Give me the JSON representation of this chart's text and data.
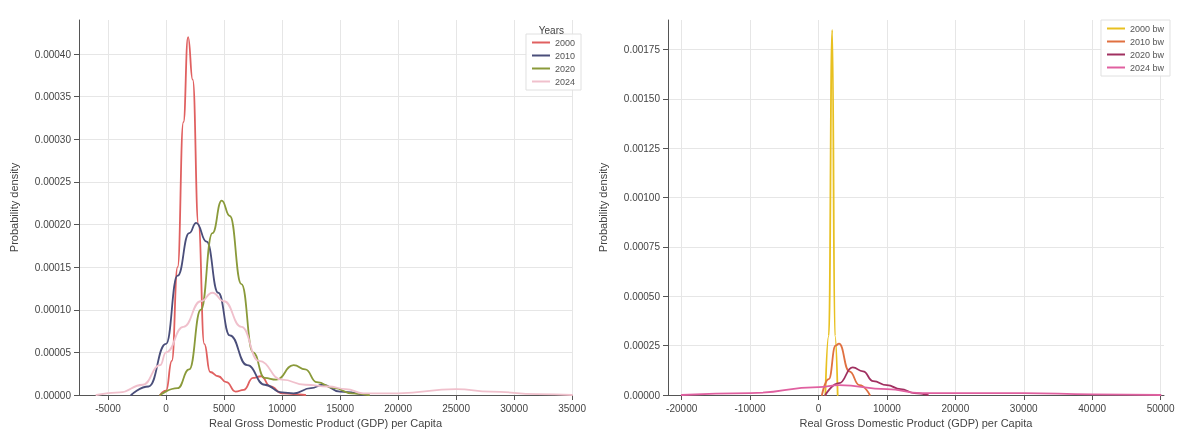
{
  "chart_data": [
    {
      "type": "line",
      "xlabel": "Real Gross Domestic Product (GDP) per Capita",
      "ylabel": "Probability density",
      "legend_title": "Years",
      "legend": "top right",
      "grid": true,
      "marker": "none",
      "line_style": "solid",
      "xlim": [
        -7500,
        35000
      ],
      "xticks": [
        -5000,
        0,
        5000,
        10000,
        15000,
        20000,
        25000,
        30000,
        35000
      ],
      "ylim": [
        0,
        0.00044
      ],
      "yticks": [
        {
          "value": 0,
          "label": "0.00000"
        },
        {
          "value": 5e-05,
          "label": "0.00005"
        },
        {
          "value": 0.0001,
          "label": "0.00010"
        },
        {
          "value": 0.00015,
          "label": "0.00015"
        },
        {
          "value": 0.0002,
          "label": "0.00020"
        },
        {
          "value": 0.00025,
          "label": "0.00025"
        },
        {
          "value": 0.0003,
          "label": "0.00030"
        },
        {
          "value": 0.00035,
          "label": "0.00035"
        },
        {
          "value": 0.0004,
          "label": "0.00040"
        }
      ],
      "series": [
        {
          "name": "2000",
          "color": "#e06060",
          "x": [
            -500,
            0,
            500,
            1000,
            1500,
            1900,
            2300,
            2800,
            3300,
            3800,
            4500,
            5200,
            6000,
            6700,
            7500,
            8200,
            9000,
            10000,
            11000,
            12000
          ],
          "values": [
            0,
            5e-06,
            4e-05,
            0.00015,
            0.00032,
            0.00042,
            0.00037,
            0.0002,
            6e-05,
            2.7e-05,
            2.2e-05,
            1.5e-05,
            4e-06,
            6e-06,
            2e-05,
            2.2e-05,
            1e-05,
            2e-06,
            1e-06,
            0
          ]
        },
        {
          "name": "2010",
          "color": "#4a4e7a",
          "x": [
            -3000,
            -1500,
            0,
            1000,
            2000,
            2600,
            3500,
            4500,
            5500,
            7000,
            8500,
            10000,
            11000,
            12500,
            13500,
            15000,
            17000
          ],
          "values": [
            0,
            1e-05,
            6e-05,
            0.00014,
            0.00019,
            0.000202,
            0.00018,
            0.00012,
            7e-05,
            3.5e-05,
            1.2e-05,
            3e-06,
            2e-06,
            8e-06,
            1.2e-05,
            4e-06,
            0
          ]
        },
        {
          "name": "2020",
          "color": "#8a9a3a",
          "x": [
            -500,
            1000,
            2000,
            3000,
            4000,
            4800,
            5500,
            6500,
            7500,
            8500,
            9500,
            11000,
            12000,
            13000,
            14500,
            16000,
            17500
          ],
          "values": [
            0,
            8e-06,
            3e-05,
            0.0001,
            0.00019,
            0.000228,
            0.00021,
            0.00013,
            5e-05,
            2e-05,
            1.8e-05,
            3.5e-05,
            3e-05,
            1.5e-05,
            8e-06,
            2e-06,
            0
          ]
        },
        {
          "name": "2024",
          "color": "#f0c0cc",
          "x": [
            -6000,
            -4000,
            -2000,
            -500,
            0,
            1500,
            3000,
            4000,
            5000,
            6500,
            8000,
            10000,
            12000,
            14000,
            15500,
            17000,
            20000,
            25000,
            28000,
            32000,
            35000
          ],
          "values": [
            0,
            3e-06,
            1.2e-05,
            3.5e-05,
            5e-05,
            8e-05,
            0.00011,
            0.00012,
            0.00011,
            8e-05,
            4e-05,
            1.8e-05,
            1.2e-05,
            1e-05,
            7e-06,
            2e-06,
            2e-06,
            7e-06,
            4e-06,
            1e-06,
            0
          ]
        }
      ]
    },
    {
      "type": "line",
      "xlabel": "Real Gross Domestic Product (GDP) per Capita",
      "ylabel": "Probability density",
      "legend": "top right",
      "grid": true,
      "marker": "none",
      "line_style": "solid",
      "xlim": [
        -22000,
        50500
      ],
      "xticks": [
        -20000,
        -10000,
        0,
        10000,
        20000,
        30000,
        40000,
        50000
      ],
      "ylim": [
        0,
        0.0019
      ],
      "yticks": [
        {
          "value": 0,
          "label": "0.00000"
        },
        {
          "value": 0.00025,
          "label": "0.00025"
        },
        {
          "value": 0.0005,
          "label": "0.00050"
        },
        {
          "value": 0.00075,
          "label": "0.00075"
        },
        {
          "value": 0.001,
          "label": "0.00100"
        },
        {
          "value": 0.00125,
          "label": "0.00125"
        },
        {
          "value": 0.0015,
          "label": "0.00150"
        },
        {
          "value": 0.00175,
          "label": "0.00175"
        }
      ],
      "series": [
        {
          "name": "2000 bw",
          "color": "#e8c020",
          "x": [
            1000,
            1500,
            2000,
            2400,
            2800
          ],
          "values": [
            0,
            0.0003,
            0.00185,
            0.0003,
            0
          ]
        },
        {
          "name": "2010 bw",
          "color": "#e07040",
          "x": [
            500,
            1500,
            2500,
            3000,
            4500,
            6000,
            7500
          ],
          "values": [
            0,
            8e-05,
            0.00025,
            0.00026,
            0.00012,
            5e-05,
            0
          ]
        },
        {
          "name": "2020 bw",
          "color": "#a03060",
          "x": [
            1000,
            3000,
            5000,
            6500,
            8000,
            10000,
            12000,
            14000,
            16000
          ],
          "values": [
            0,
            6e-05,
            0.00014,
            0.00012,
            7e-05,
            5e-05,
            3e-05,
            1e-05,
            0
          ]
        },
        {
          "name": "2024 bw",
          "color": "#e060a0",
          "x": [
            -20000,
            -10000,
            0,
            3000,
            10000,
            15000,
            20000,
            30000,
            40000,
            50000
          ],
          "values": [
            0,
            1e-05,
            4e-05,
            5e-05,
            3e-05,
            1e-05,
            1e-05,
            1e-05,
            3e-06,
            0
          ]
        }
      ]
    }
  ]
}
